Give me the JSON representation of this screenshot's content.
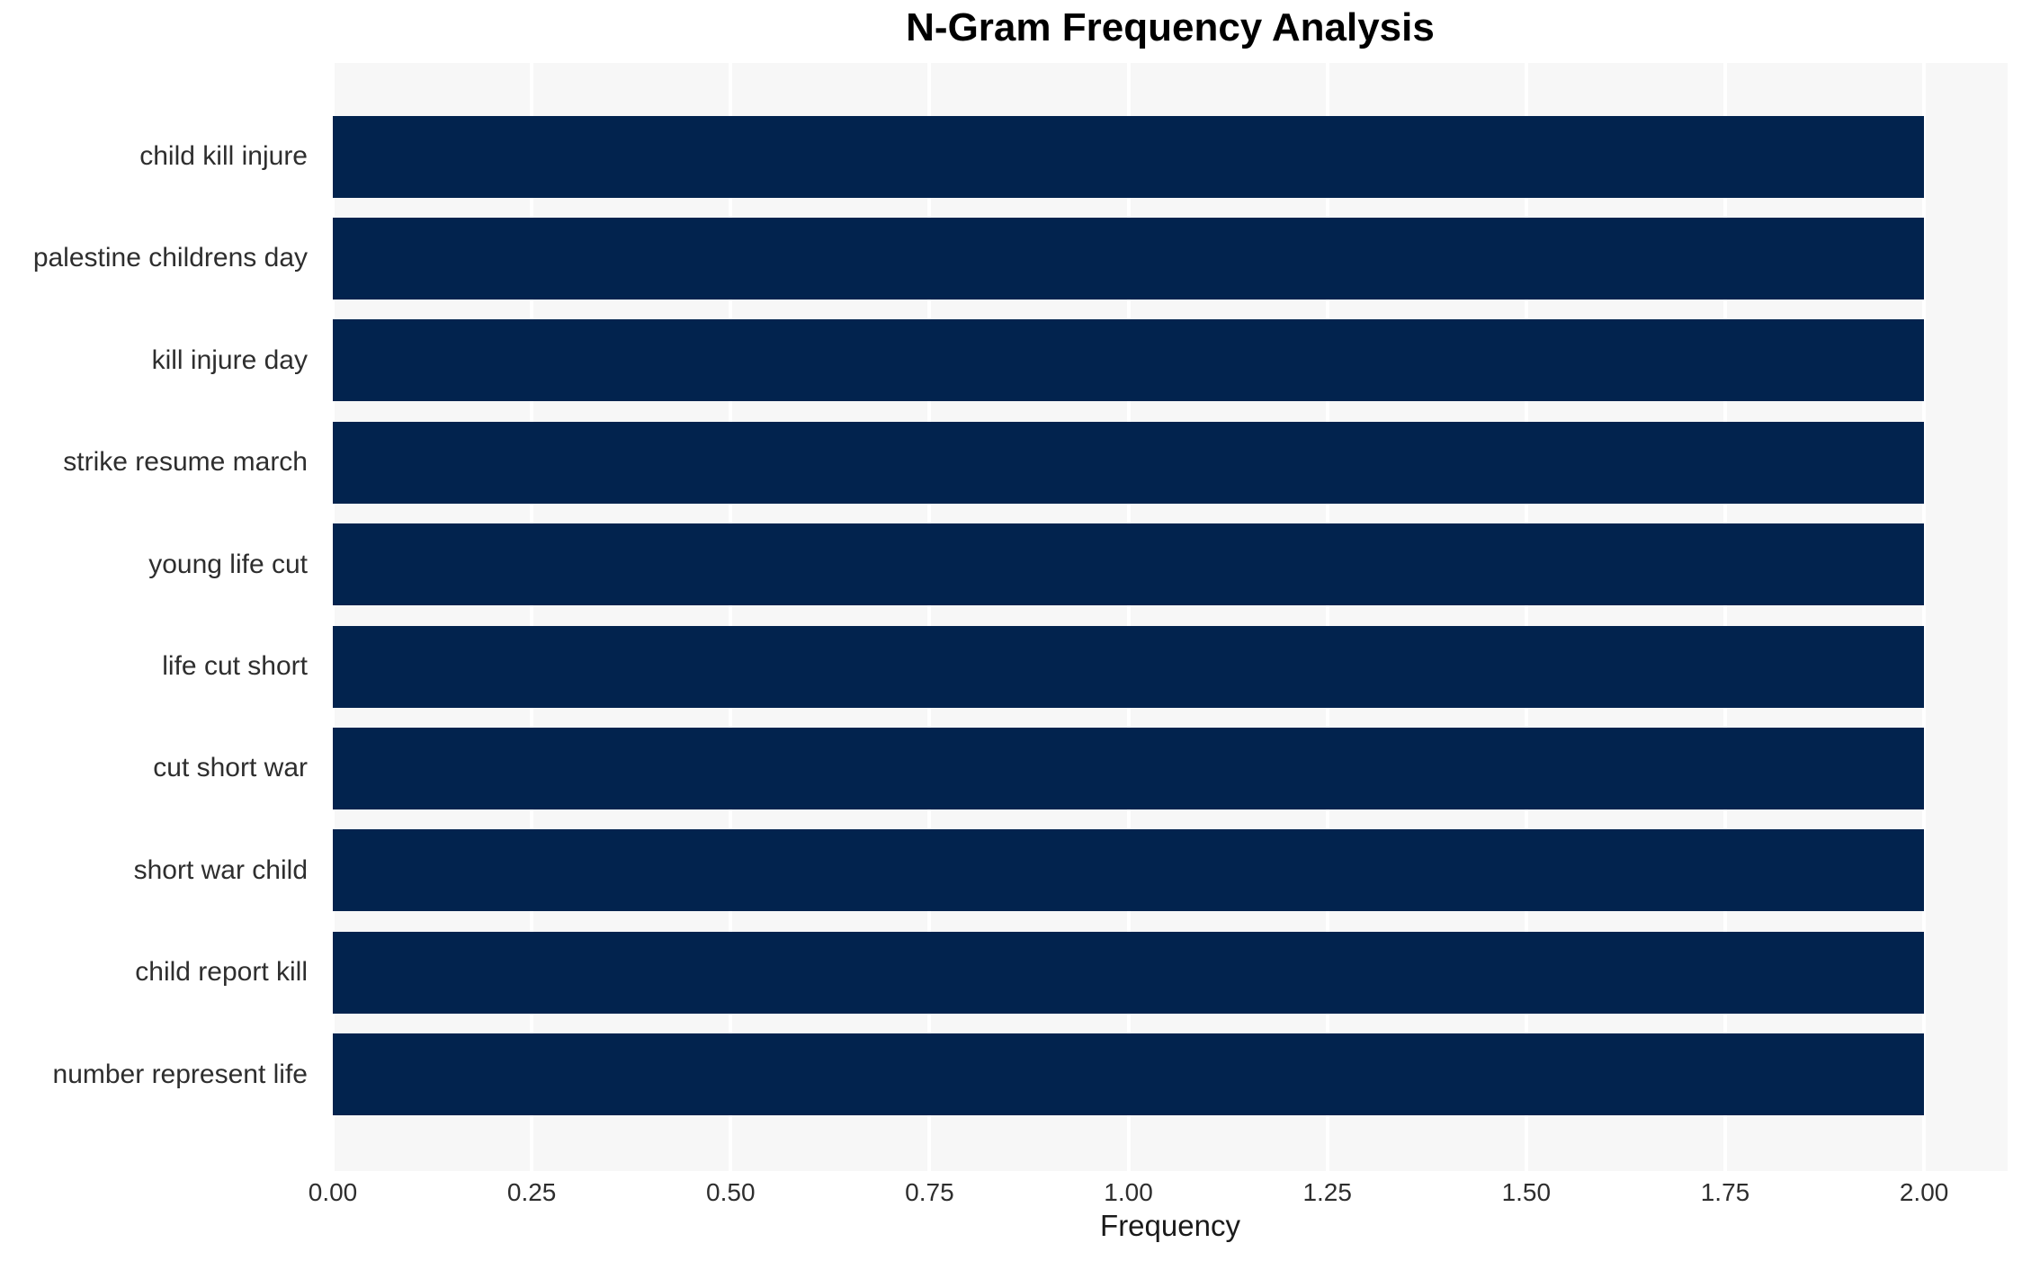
{
  "chart_data": {
    "type": "bar",
    "orientation": "horizontal",
    "title": "N-Gram Frequency Analysis",
    "xlabel": "Frequency",
    "ylabel": "",
    "categories": [
      "child kill injure",
      "palestine childrens day",
      "kill injure day",
      "strike resume march",
      "young life cut",
      "life cut short",
      "cut short war",
      "short war child",
      "child report kill",
      "number represent life"
    ],
    "values": [
      2,
      2,
      2,
      2,
      2,
      2,
      2,
      2,
      2,
      2
    ],
    "xlim": [
      0,
      2.105
    ],
    "xticks": [
      0,
      0.25,
      0.5,
      0.75,
      1,
      1.25,
      1.5,
      1.75,
      2
    ],
    "xtick_labels": [
      "0.00",
      "0.25",
      "0.50",
      "0.75",
      "1.00",
      "1.25",
      "1.50",
      "1.75",
      "2.00"
    ],
    "grid": true,
    "legend": false,
    "colors": {
      "bar": "#02234e",
      "plot_background": "#f7f7f7",
      "gridline": "#ffffff",
      "tick_text": "#2e2e2e",
      "title_text": "#000000",
      "axis_label_text": "#1a1a1a",
      "figure_background": "#ffffff"
    }
  }
}
